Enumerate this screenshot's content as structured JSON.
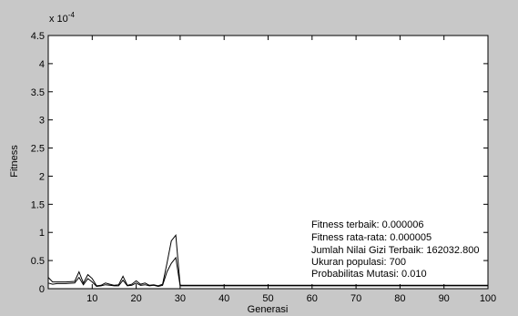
{
  "chart_data": {
    "type": "line",
    "xlabel": "Generasi",
    "ylabel": "Fitness",
    "y_exponent_label": "x 10",
    "y_exponent_power": "-4",
    "xlim": [
      0,
      100
    ],
    "ylim": [
      0,
      4.5
    ],
    "x_ticks": [
      10,
      20,
      30,
      40,
      50,
      60,
      70,
      80,
      90,
      100
    ],
    "y_ticks": [
      0,
      0.5,
      1,
      1.5,
      2,
      2.5,
      3,
      3.5,
      4,
      4.5
    ],
    "x_tick_labels": [
      "10",
      "20",
      "30",
      "40",
      "50",
      "60",
      "70",
      "80",
      "90",
      "100"
    ],
    "y_tick_labels": [
      "0",
      "0.5",
      "1",
      "1.5",
      "2",
      "2.5",
      "3",
      "3.5",
      "4",
      "4.5"
    ],
    "grid": false,
    "colors": {
      "background": "#c8c8c8",
      "plot_area": "#ffffff",
      "series": "#000000"
    },
    "series": [
      {
        "x": [
          0,
          1,
          2,
          4,
          6,
          7,
          8,
          9,
          10,
          11,
          12,
          13,
          14,
          15,
          16,
          17,
          18,
          19,
          20,
          21,
          22,
          23,
          24,
          25,
          26,
          27,
          28,
          29,
          30,
          35,
          40,
          45,
          50,
          55,
          60,
          65,
          70,
          75,
          80,
          85,
          90,
          95,
          100
        ],
        "values": [
          0.2,
          0.12,
          0.12,
          0.12,
          0.13,
          0.3,
          0.1,
          0.25,
          0.18,
          0.05,
          0.06,
          0.1,
          0.08,
          0.06,
          0.07,
          0.22,
          0.06,
          0.08,
          0.14,
          0.08,
          0.1,
          0.06,
          0.07,
          0.05,
          0.08,
          0.45,
          0.85,
          0.95,
          0.06,
          0.06,
          0.06,
          0.06,
          0.06,
          0.06,
          0.06,
          0.06,
          0.06,
          0.06,
          0.06,
          0.06,
          0.06,
          0.06,
          0.06
        ]
      },
      {
        "x": [
          0,
          1,
          2,
          4,
          6,
          7,
          8,
          9,
          10,
          11,
          12,
          13,
          14,
          15,
          16,
          17,
          18,
          19,
          20,
          21,
          22,
          23,
          24,
          25,
          26,
          27,
          28,
          29,
          30,
          35,
          40,
          45,
          50,
          55,
          60,
          65,
          70,
          75,
          80,
          85,
          90,
          95,
          100
        ],
        "values": [
          0.1,
          0.08,
          0.09,
          0.09,
          0.1,
          0.2,
          0.07,
          0.18,
          0.12,
          0.04,
          0.05,
          0.07,
          0.06,
          0.05,
          0.05,
          0.15,
          0.05,
          0.06,
          0.1,
          0.06,
          0.07,
          0.05,
          0.06,
          0.04,
          0.06,
          0.3,
          0.45,
          0.55,
          0.05,
          0.05,
          0.05,
          0.05,
          0.05,
          0.05,
          0.05,
          0.05,
          0.05,
          0.05,
          0.05,
          0.05,
          0.05,
          0.05,
          0.05
        ]
      }
    ],
    "annotations": [
      "Fitness terbaik: 0.000006",
      "Fitness rata-rata: 0.000005",
      "Jumlah Nilai Gizi Terbaik: 162032.800",
      "Ukuran populasi: 700",
      "Probabilitas Mutasi: 0.010"
    ]
  }
}
